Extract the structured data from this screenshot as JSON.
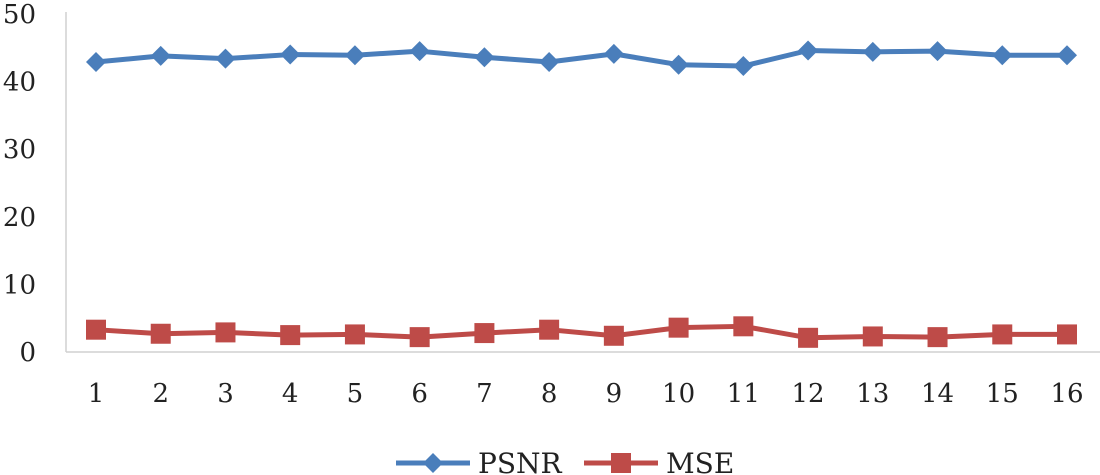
{
  "chart_data": {
    "type": "line",
    "title": "",
    "xlabel": "",
    "ylabel": "",
    "categories": [
      "1",
      "2",
      "3",
      "4",
      "5",
      "6",
      "7",
      "8",
      "9",
      "10",
      "11",
      "12",
      "13",
      "14",
      "15",
      "16"
    ],
    "ylim": [
      0,
      50
    ],
    "yticks": [
      0,
      10,
      20,
      30,
      40,
      50
    ],
    "grid": false,
    "legend_position": "bottom",
    "series": [
      {
        "name": "PSNR",
        "color": "#4a7ebb",
        "marker": "diamond",
        "values": [
          42.9,
          43.8,
          43.4,
          44.0,
          43.9,
          44.5,
          43.6,
          42.9,
          44.1,
          42.5,
          42.3,
          44.6,
          44.4,
          44.5,
          43.9,
          43.9
        ]
      },
      {
        "name": "MSE",
        "color": "#be4b48",
        "marker": "square",
        "values": [
          3.3,
          2.7,
          2.9,
          2.5,
          2.6,
          2.2,
          2.8,
          3.3,
          2.4,
          3.6,
          3.8,
          2.1,
          2.3,
          2.2,
          2.6,
          2.6
        ]
      }
    ]
  }
}
